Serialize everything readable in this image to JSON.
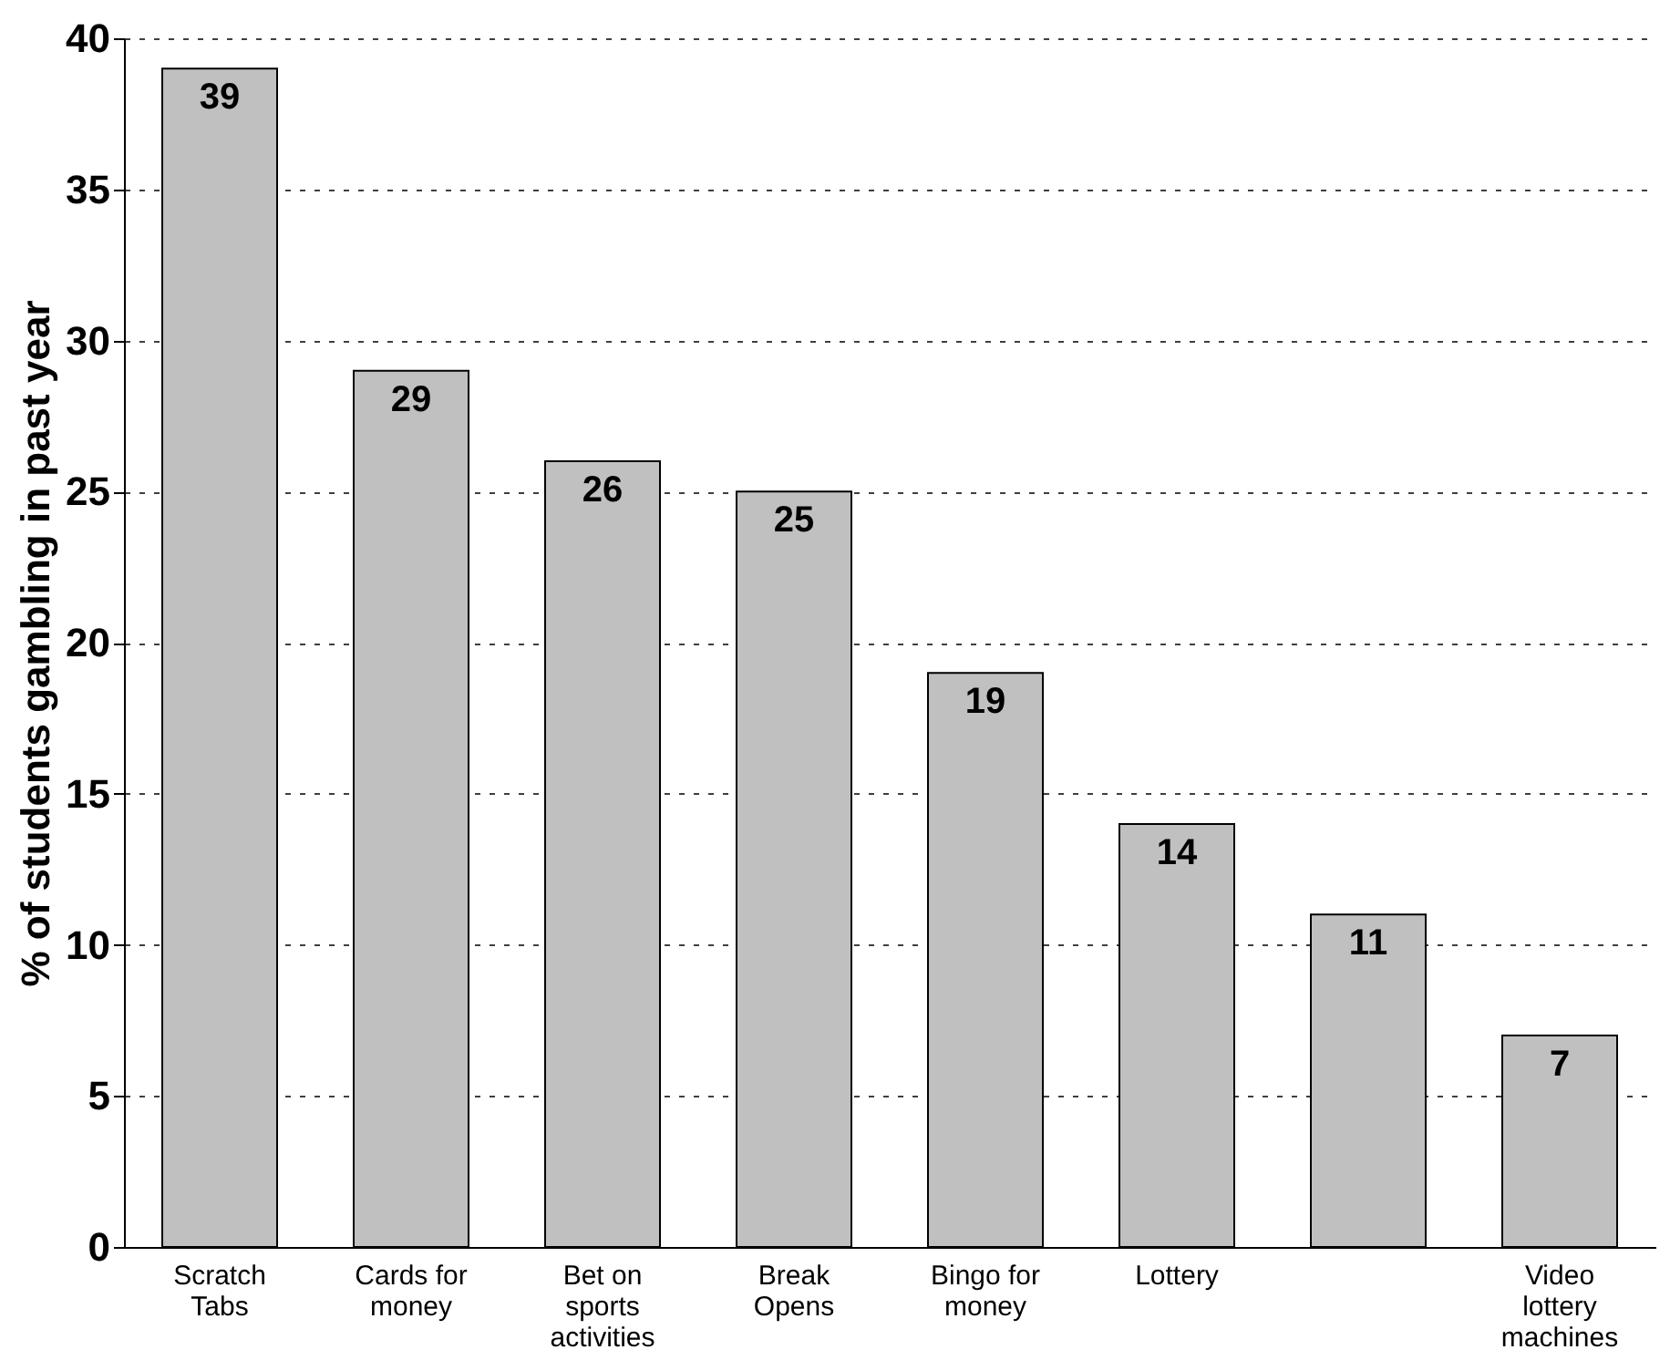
{
  "chart_data": {
    "type": "bar",
    "ylabel": "% of students gambling in past year",
    "categories": [
      "Scratch Tabs",
      "Cards for money",
      "Bet on sports activities",
      "Break Opens",
      "Bingo for money",
      "Lottery",
      null,
      "Video lottery machines"
    ],
    "values": [
      39,
      29,
      26,
      25,
      19,
      14,
      11,
      7
    ],
    "color": "#c0c0c0",
    "ylim": [
      0,
      40
    ],
    "yticks": [
      0,
      5,
      10,
      15,
      20,
      25,
      30,
      35,
      40
    ],
    "grid": "y",
    "data_labels": true
  }
}
